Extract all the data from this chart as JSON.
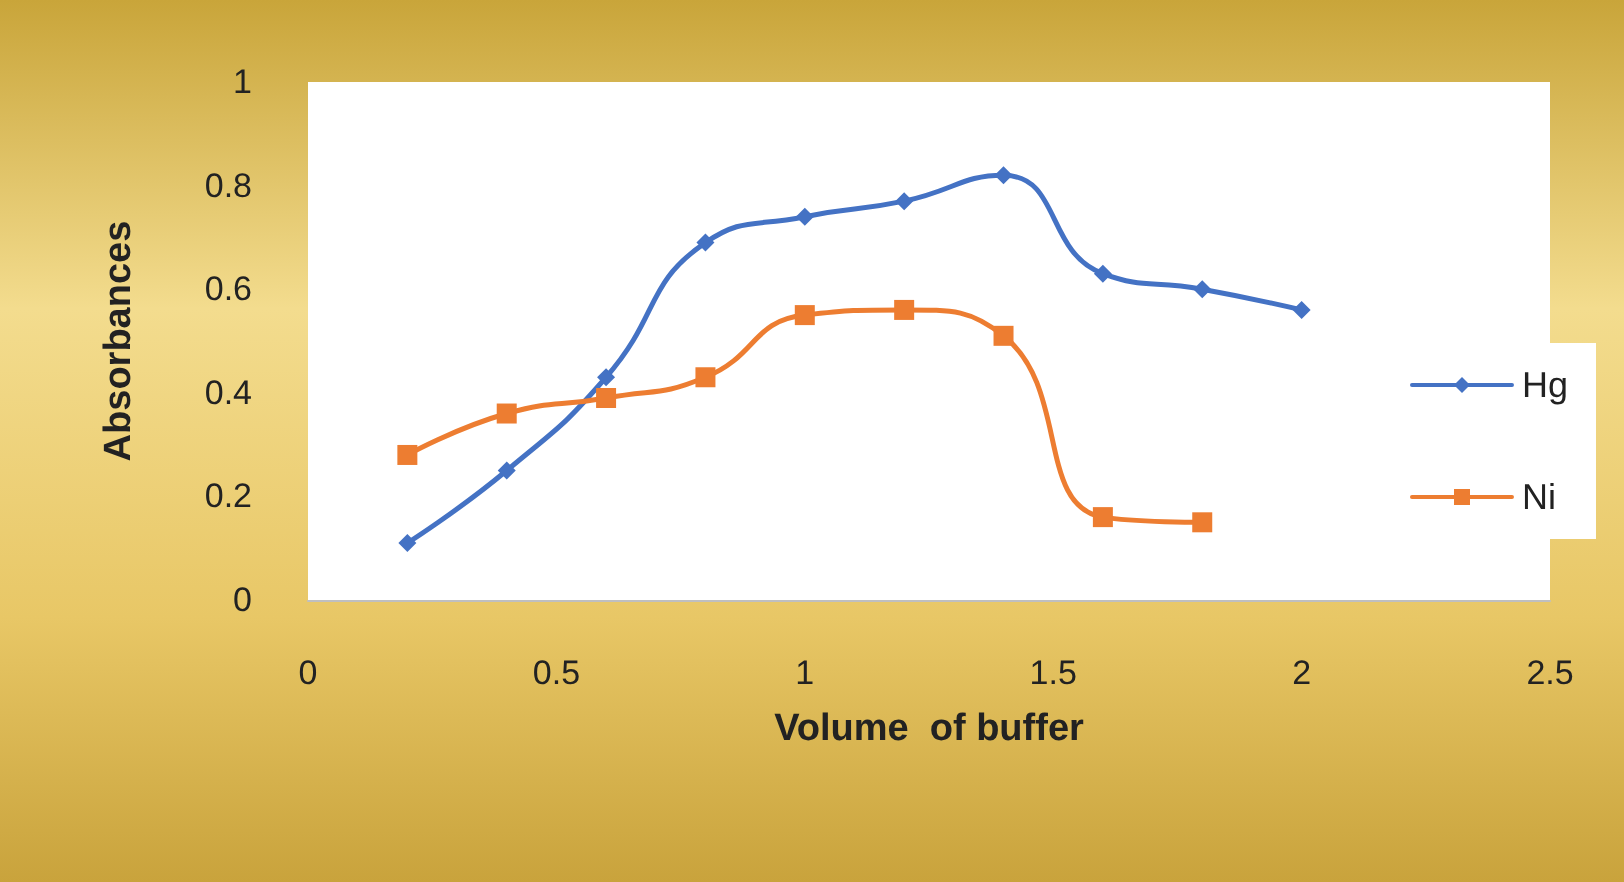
{
  "chart_data": {
    "type": "line",
    "xlabel": "Volume  of buffer",
    "ylabel": "Absorbances",
    "xlim": [
      0,
      2.5
    ],
    "xticks": [
      0,
      0.5,
      1,
      1.5,
      2,
      2.5
    ],
    "ylim": [
      0,
      1
    ],
    "yticks": [
      0,
      0.2,
      0.4,
      0.6,
      0.8,
      1
    ],
    "grid": false,
    "legend": "right",
    "line_style": "solid",
    "series": [
      {
        "name": "Hg",
        "color": "#4472c4",
        "marker": "diamond",
        "x": [
          0.2,
          0.4,
          0.6,
          0.8,
          1.0,
          1.2,
          1.4,
          1.6,
          1.8,
          2.0
        ],
        "values": [
          0.11,
          0.25,
          0.43,
          0.69,
          0.74,
          0.77,
          0.82,
          0.63,
          0.6,
          0.56
        ]
      },
      {
        "name": "Ni",
        "color": "#ed7d31",
        "marker": "square",
        "x": [
          0.2,
          0.4,
          0.6,
          0.8,
          1.0,
          1.2,
          1.4,
          1.6,
          1.8
        ],
        "values": [
          0.28,
          0.36,
          0.39,
          0.43,
          0.55,
          0.56,
          0.51,
          0.16,
          0.15
        ]
      }
    ]
  }
}
